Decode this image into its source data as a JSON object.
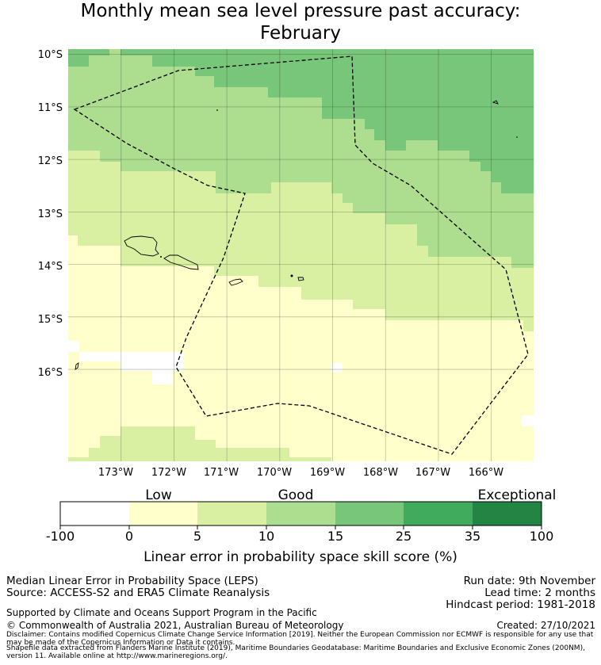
{
  "title": {
    "line1": "Monthly mean sea level pressure past accuracy:",
    "line2": "February"
  },
  "map": {
    "lat_labels": [
      "10°S",
      "11°S",
      "12°S",
      "13°S",
      "14°S",
      "15°S",
      "16°S"
    ],
    "lon_labels": [
      "173°W",
      "172°W",
      "171°W",
      "170°W",
      "169°W",
      "168°W",
      "167°W",
      "166°W"
    ],
    "lat_range": [
      -17.75,
      -9.9
    ],
    "lon_range": [
      -174.0,
      -165.2
    ],
    "boundary_name": "Maritime boundary (EEZ)",
    "category_colors": [
      "#ffffff",
      "#ffffcc",
      "#d9f0a3",
      "#addd8e",
      "#78c679",
      "#41ab5d",
      "#238443"
    ]
  },
  "colorbar": {
    "category_labels": [
      "Low",
      "Good",
      "Exceptional"
    ],
    "ticks": [
      "-100",
      "0",
      "5",
      "10",
      "15",
      "25",
      "35",
      "100"
    ],
    "xlabel": "Linear error in probability space skill score (%)"
  },
  "footer": {
    "left1": "Median Linear Error in Probability Space (LEPS)",
    "left2": "Source: ACCESS-S2 and ERA5 Climate Reanalysis",
    "right1": "Run date: 9th November",
    "right2": "Lead time: 2 months",
    "right3": "Hindcast period: 1981-2018",
    "support": "Supported by Climate and Oceans Support Program in the Pacific",
    "copyright": "© Commonwealth of Australia 2021, Australian Bureau of Meteorology",
    "created": "Created: 27/10/2021",
    "disclaimer": "Disclaimer: Contains modified Copernicus Climate Change Service Information [2019]. Neither the European Commission nor ECMWF is responsible for any use that may be made of the Copernicus Information or Data it contains.",
    "shapefile": "Shapefile data extracted from Flanders Marine Institute (2019), Maritime Boundaries Geodatabase: Maritime Boundaries and Exclusive Economic Zones (200NM), version 11. Available online at http://www.marineregions.org/."
  }
}
